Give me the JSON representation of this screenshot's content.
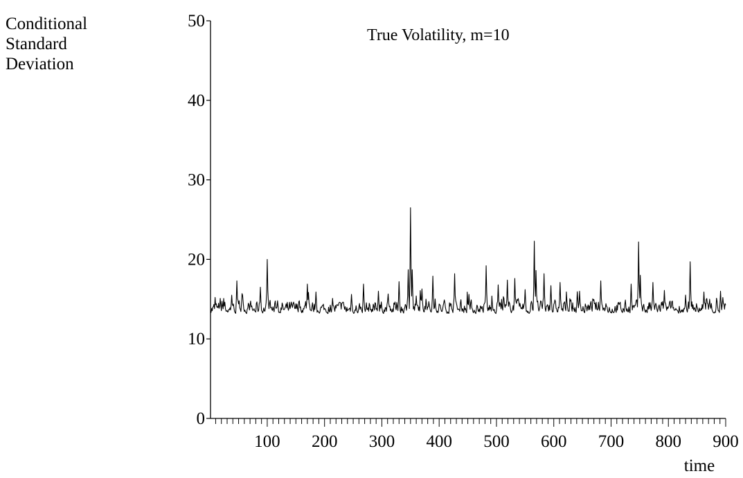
{
  "chart_data": {
    "type": "line",
    "title": "True Volatility, m=10",
    "ylabel_lines": [
      "Conditional",
      "Standard",
      "Deviation"
    ],
    "xlabel": "time",
    "xlim": [
      1,
      900
    ],
    "ylim": [
      0,
      50
    ],
    "yticks": [
      0,
      10,
      20,
      30,
      40,
      50
    ],
    "xticks": [
      100,
      200,
      300,
      400,
      500,
      600,
      700,
      800,
      900
    ],
    "xminor_step": 10,
    "grid": false,
    "line_color": "#000000",
    "spikes": [
      [
        18,
        15.1
      ],
      [
        38,
        15.5
      ],
      [
        47,
        17.3
      ],
      [
        56,
        15.7
      ],
      [
        88,
        16.5
      ],
      [
        100,
        20.0
      ],
      [
        118,
        14.8
      ],
      [
        170,
        16.9
      ],
      [
        185,
        15.9
      ],
      [
        214,
        15.1
      ],
      [
        247,
        15.6
      ],
      [
        268,
        16.9
      ],
      [
        294,
        16.0
      ],
      [
        330,
        17.2
      ],
      [
        346,
        18.7
      ],
      [
        350,
        26.5
      ],
      [
        353,
        18.7
      ],
      [
        360,
        15.4
      ],
      [
        389,
        17.9
      ],
      [
        427,
        18.2
      ],
      [
        452,
        15.6
      ],
      [
        482,
        19.2
      ],
      [
        503,
        16.8
      ],
      [
        519,
        17.4
      ],
      [
        532,
        17.6
      ],
      [
        550,
        16.2
      ],
      [
        566,
        22.3
      ],
      [
        569,
        18.6
      ],
      [
        583,
        18.2
      ],
      [
        595,
        16.7
      ],
      [
        611,
        17.1
      ],
      [
        645,
        16.0
      ],
      [
        682,
        17.3
      ],
      [
        735,
        16.9
      ],
      [
        748,
        22.2
      ],
      [
        751,
        18.0
      ],
      [
        773,
        17.1
      ],
      [
        793,
        16.1
      ],
      [
        838,
        19.7
      ],
      [
        862,
        15.9
      ],
      [
        891,
        16.0
      ]
    ]
  }
}
